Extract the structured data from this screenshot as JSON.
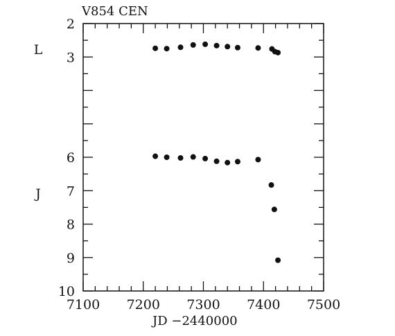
{
  "chart_data": {
    "type": "scatter",
    "title": "V854 CEN",
    "xlabel": "JD −2440000",
    "ylabel": "",
    "xlim": [
      7100,
      7500
    ],
    "ylim": [
      10,
      2
    ],
    "y_inverted": true,
    "x_ticks": [
      7100,
      7200,
      7300,
      7400,
      7500
    ],
    "x_ticks_labels": [
      "7100",
      "7200",
      "7300",
      "7400",
      "7500"
    ],
    "y_ticks": [
      2,
      3,
      6,
      7,
      8,
      9,
      10
    ],
    "y_ticks_labels": [
      "2",
      "3",
      "6",
      "7",
      "8",
      "9",
      "10"
    ],
    "y_band_labels": [
      "L",
      "J"
    ],
    "grid": false,
    "series": [
      {
        "name": "L",
        "x": [
          7220,
          7239,
          7262,
          7283,
          7303,
          7322,
          7340,
          7357,
          7391,
          7414,
          7419,
          7424
        ],
        "y": [
          2.74,
          2.75,
          2.71,
          2.64,
          2.62,
          2.66,
          2.69,
          2.72,
          2.73,
          2.76,
          2.84,
          2.87
        ]
      },
      {
        "name": "J",
        "x": [
          7220,
          7239,
          7262,
          7283,
          7303,
          7322,
          7340,
          7357,
          7391,
          7413,
          7418,
          7424
        ],
        "y": [
          5.97,
          6.0,
          6.02,
          5.99,
          6.04,
          6.12,
          6.16,
          6.13,
          6.07,
          6.83,
          7.56,
          9.08
        ]
      }
    ],
    "colors": {
      "points": "#111111",
      "axes": "#111111"
    }
  }
}
